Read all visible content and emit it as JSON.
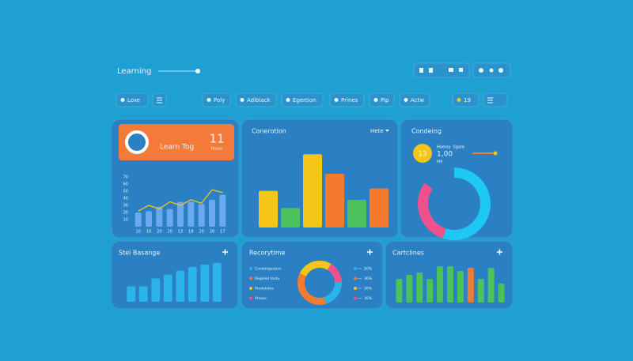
{
  "header": {
    "title": "Learning"
  },
  "toolbar": {
    "buttons": [
      "Loxe",
      "Poly",
      "Adiblack",
      "Egertion",
      "Prines",
      "Pip",
      "Actw",
      "19"
    ]
  },
  "panels": [
    {
      "title": "Learn Tog",
      "stat": "11",
      "stat_label": "Hsuur",
      "chart_data": {
        "type": "combo",
        "categories": [
          "10",
          "10",
          "20",
          "20",
          "13",
          "18",
          "20",
          "20",
          "17"
        ],
        "series": [
          {
            "type": "bar",
            "color": "#6aa8f2",
            "values": [
              20,
              22,
              28,
              25,
              35,
              35,
              32,
              38,
              45
            ]
          },
          {
            "type": "line",
            "color": "#f5c518",
            "values": [
              22,
              30,
              25,
              35,
              30,
              38,
              33,
              52,
              48
            ]
          }
        ],
        "ylim": [
          0,
          80
        ],
        "yticks": [
          10,
          20,
          30,
          40,
          50,
          60,
          70
        ]
      }
    },
    {
      "title": "Conerotion",
      "menu": "Hete",
      "chart_data": {
        "type": "bar",
        "values": [
          45,
          24,
          90,
          66,
          34,
          48
        ],
        "colors": [
          "#f5c518",
          "#4cc35a",
          "#f5c518",
          "#f47a30",
          "#4cc35a",
          "#f47a30"
        ],
        "ylim": [
          0,
          100
        ]
      }
    },
    {
      "title": "Condeing",
      "badge": "13",
      "stat_label": "Haeniy ·Sgore",
      "stat": "1,00",
      "stat_unit": "PPI",
      "chart_data": {
        "type": "donut",
        "values": [
          65,
          35
        ],
        "colors": [
          "#1ec8f5",
          "#f0508c"
        ]
      }
    },
    {
      "title": "Stei Basange",
      "chart_data": {
        "type": "bar",
        "values": [
          20,
          20,
          30,
          35,
          40,
          45,
          48,
          50
        ],
        "color": "#2ab4ea",
        "ylim": [
          0,
          55
        ]
      }
    },
    {
      "title": "Recorytime",
      "chart_data": {
        "type": "donut",
        "series": [
          {
            "name": "Conduligestors",
            "color": "#2ab4ea",
            "value": 20,
            "value_label": "20%"
          },
          {
            "name": "Regeled textu",
            "color": "#f47a30",
            "value": 36,
            "value_label": "36%"
          },
          {
            "name": "Prodehites",
            "color": "#f5c518",
            "value": 26,
            "value_label": "26%"
          },
          {
            "name": "Prsaes",
            "color": "#f0508c",
            "value": 16,
            "value_label": "16%"
          }
        ]
      }
    },
    {
      "title": "Cartclines",
      "chart_data": {
        "type": "bar",
        "values": [
          30,
          35,
          38,
          30,
          46,
          46,
          40,
          44,
          30,
          44,
          24
        ],
        "colors": [
          "#4cc35a",
          "#4cc35a",
          "#4cc35a",
          "#4cc35a",
          "#4cc35a",
          "#4cc35a",
          "#4cc35a",
          "#f47a30",
          "#4cc35a",
          "#4cc35a",
          "#4cc35a"
        ],
        "ylim": [
          0,
          50
        ]
      }
    }
  ]
}
